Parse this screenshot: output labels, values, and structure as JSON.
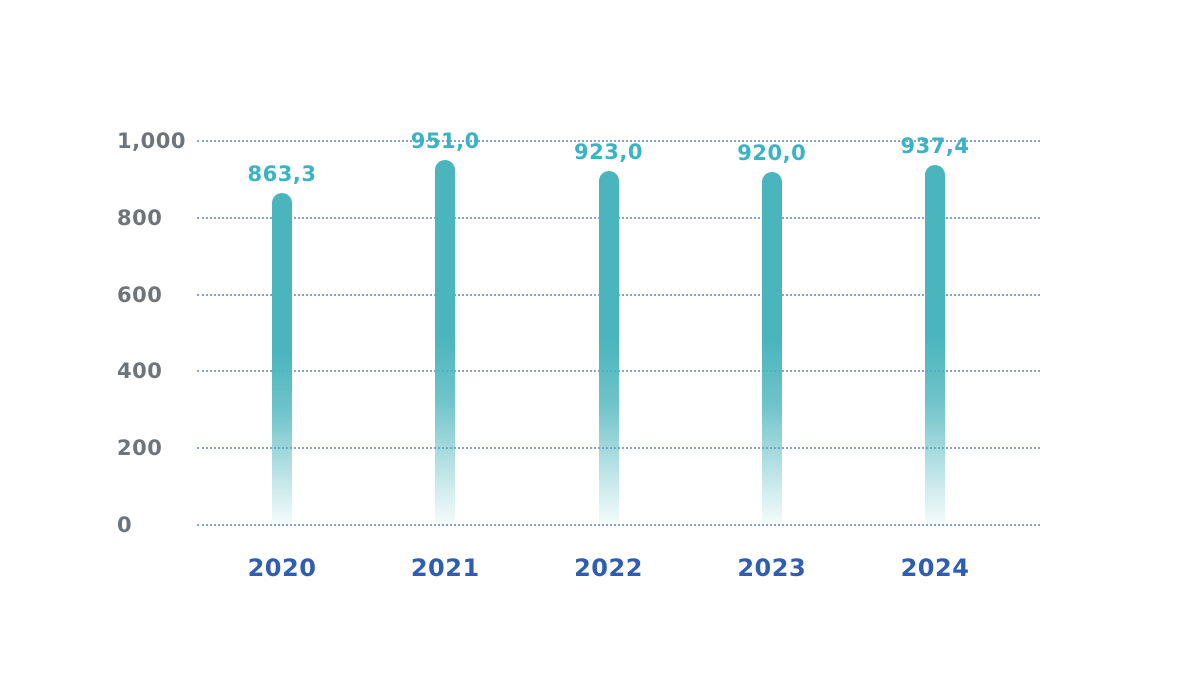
{
  "chart_data": {
    "type": "bar",
    "title": "",
    "categories": [
      "2020",
      "2021",
      "2022",
      "2023",
      "2024"
    ],
    "values": [
      863.3,
      951.0,
      923.0,
      920.0,
      937.4
    ],
    "value_labels": [
      "863,3",
      "951,0",
      "923,0",
      "920,0",
      "937,4"
    ],
    "y_ticks": [
      0,
      200,
      400,
      600,
      800,
      1000
    ],
    "y_tick_labels": [
      "0",
      "200",
      "400",
      "600",
      "800",
      "1,000"
    ],
    "ylim": [
      0,
      1000
    ],
    "xlabel": "",
    "ylabel": "",
    "grid": "horizontal-dotted",
    "legend": "none",
    "colors": {
      "bar": "#4BB5BD",
      "value_label": "#3AB3C3",
      "category_label": "#2F5DB1",
      "tick_label": "#6E747A",
      "gridline": "#4664AF",
      "background": "#FFFFFF"
    }
  }
}
